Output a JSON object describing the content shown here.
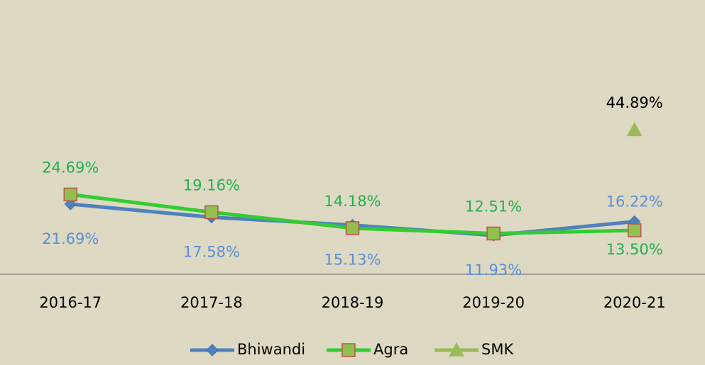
{
  "chart_data": {
    "type": "line",
    "categories": [
      "2016-17",
      "2017-18",
      "2018-19",
      "2019-20",
      "2020-21"
    ],
    "series": [
      {
        "name": "Bhiwandi",
        "color": "#4f81bd",
        "values": [
          21.69,
          17.58,
          15.13,
          11.93,
          16.22
        ],
        "value_labels": [
          "21.69%",
          "17.58%",
          "15.13%",
          "11.93%",
          "16.22%"
        ]
      },
      {
        "name": "Agra",
        "color": "#33cc33",
        "values": [
          24.69,
          19.16,
          14.18,
          12.51,
          13.5
        ],
        "value_labels": [
          "24.69%",
          "19.16%",
          "14.18%",
          "12.51%",
          "13.50%"
        ]
      },
      {
        "name": "SMK",
        "color": "#9bbb59",
        "values": [
          null,
          null,
          null,
          null,
          44.89
        ],
        "value_labels": [
          null,
          null,
          null,
          null,
          "44.89%"
        ]
      }
    ],
    "ylim": [
      0,
      50
    ]
  }
}
